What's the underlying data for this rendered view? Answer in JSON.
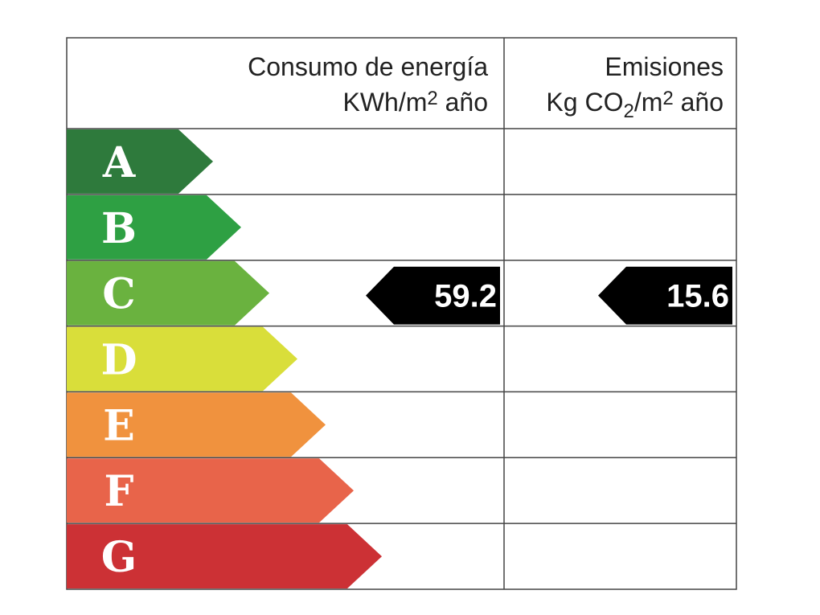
{
  "header": {
    "energy": {
      "line1": "Consumo de energía",
      "line2": [
        "KWh/m",
        "2",
        " año"
      ]
    },
    "emissions": {
      "line1": "Emisiones",
      "line2": [
        "Kg CO",
        "2",
        "/m",
        "2",
        " año"
      ]
    }
  },
  "rows": [
    {
      "letter": "A",
      "color": "#2e7a3c"
    },
    {
      "letter": "B",
      "color": "#2ea043"
    },
    {
      "letter": "C",
      "color": "#6ab23f",
      "energy": 59.2,
      "emissions": 15.6
    },
    {
      "letter": "D",
      "color": "#d9de3a"
    },
    {
      "letter": "E",
      "color": "#f0923e"
    },
    {
      "letter": "F",
      "color": "#e8644a"
    },
    {
      "letter": "G",
      "color": "#cc3135"
    }
  ]
}
